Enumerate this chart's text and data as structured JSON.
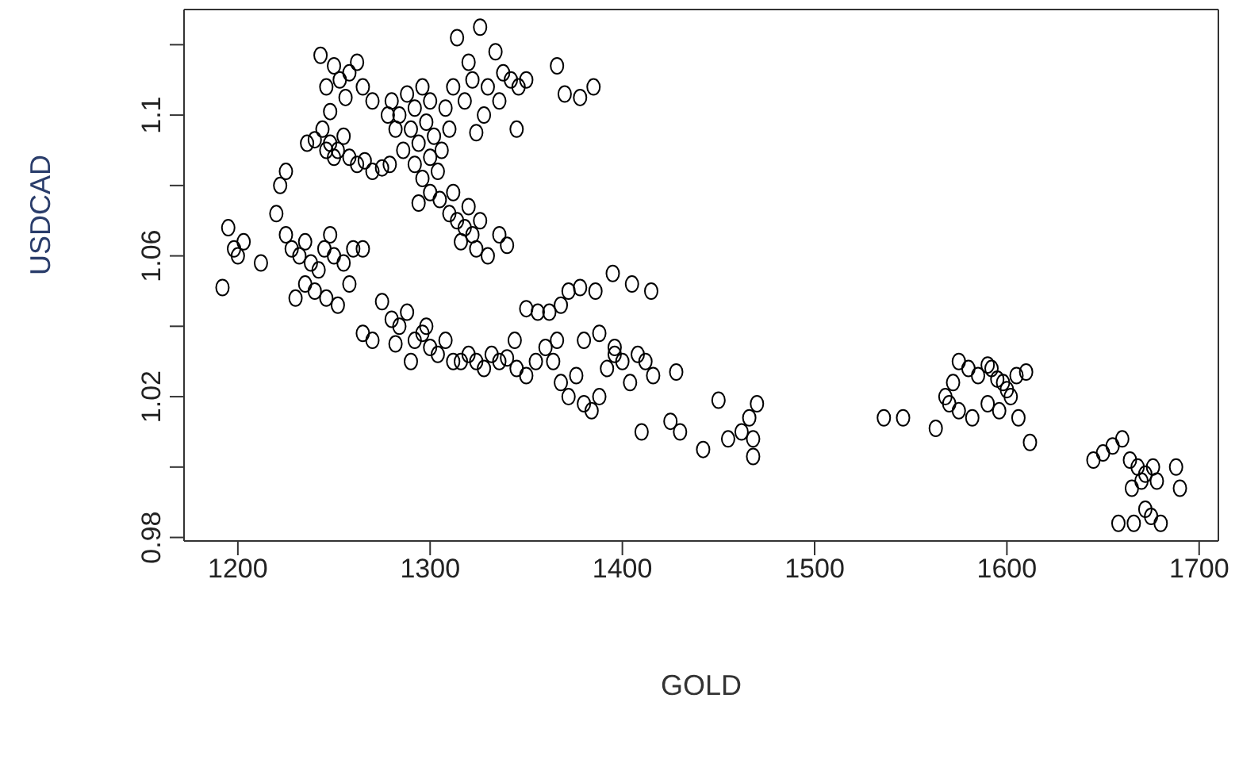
{
  "chart_data": {
    "type": "scatter",
    "xlabel": "GOLD",
    "ylabel": "USDCAD",
    "marker": "circle",
    "xlim": [
      1172,
      1710
    ],
    "xticks": [
      1200,
      1300,
      1400,
      1500,
      1600,
      1700
    ],
    "ylim": [
      0.979,
      1.13
    ],
    "yticks": [
      0.98,
      {
        "value": 1.0,
        "label": null
      },
      1.02,
      {
        "value": 1.04,
        "label": null
      },
      1.06,
      {
        "value": 1.08,
        "label": null
      },
      1.1,
      {
        "value": 1.12,
        "label": null
      }
    ],
    "series": [
      {
        "color": "#000000",
        "x": [
          1243,
          1250,
          1258,
          1262,
          1246,
          1253,
          1265,
          1256,
          1270,
          1248,
          1240,
          1244,
          1248,
          1252,
          1255,
          1258,
          1262,
          1266,
          1270,
          1275,
          1279,
          1246,
          1250,
          1236,
          1280,
          1284,
          1288,
          1292,
          1296,
          1300,
          1290,
          1294,
          1298,
          1286,
          1302,
          1306,
          1292,
          1296,
          1300,
          1304,
          1282,
          1278,
          1310,
          1308,
          1294,
          1300,
          1305,
          1310,
          1314,
          1318,
          1322,
          1316,
          1324,
          1330,
          1336,
          1340,
          1312,
          1320,
          1326,
          1314,
          1320,
          1326,
          1322,
          1330,
          1334,
          1338,
          1342,
          1346,
          1350,
          1318,
          1328,
          1324,
          1345,
          1336,
          1312,
          1366,
          1370,
          1378,
          1385,
          1195,
          1198,
          1200,
          1203,
          1192,
          1212,
          1220,
          1225,
          1228,
          1232,
          1235,
          1238,
          1242,
          1245,
          1250,
          1255,
          1260,
          1265,
          1230,
          1235,
          1240,
          1246,
          1252,
          1258,
          1225,
          1222,
          1248,
          1265,
          1270,
          1275,
          1280,
          1284,
          1288,
          1292,
          1296,
          1300,
          1304,
          1308,
          1312,
          1316,
          1320,
          1324,
          1328,
          1332,
          1336,
          1282,
          1290,
          1298,
          1340,
          1344,
          1350,
          1356,
          1362,
          1368,
          1345,
          1350,
          1355,
          1360,
          1364,
          1368,
          1372,
          1376,
          1380,
          1384,
          1388,
          1392,
          1396,
          1400,
          1404,
          1408,
          1412,
          1416,
          1380,
          1388,
          1396,
          1366,
          1372,
          1378,
          1386,
          1395,
          1405,
          1415,
          1410,
          1428,
          1425,
          1430,
          1442,
          1450,
          1455,
          1462,
          1466,
          1468,
          1468,
          1470,
          1536,
          1546,
          1563,
          1568,
          1572,
          1575,
          1580,
          1585,
          1590,
          1595,
          1600,
          1605,
          1610,
          1575,
          1582,
          1590,
          1596,
          1602,
          1606,
          1612,
          1570,
          1592,
          1598,
          1645,
          1650,
          1655,
          1660,
          1664,
          1668,
          1672,
          1676,
          1665,
          1670,
          1678,
          1688,
          1690,
          1658,
          1666,
          1675,
          1680,
          1672
        ],
        "values": [
          1.117,
          1.114,
          1.112,
          1.115,
          1.108,
          1.11,
          1.108,
          1.105,
          1.104,
          1.101,
          1.093,
          1.096,
          1.092,
          1.09,
          1.094,
          1.088,
          1.086,
          1.087,
          1.084,
          1.085,
          1.086,
          1.09,
          1.088,
          1.092,
          1.104,
          1.1,
          1.106,
          1.102,
          1.108,
          1.104,
          1.096,
          1.092,
          1.098,
          1.09,
          1.094,
          1.09,
          1.086,
          1.082,
          1.088,
          1.084,
          1.096,
          1.1,
          1.096,
          1.102,
          1.075,
          1.078,
          1.076,
          1.072,
          1.07,
          1.068,
          1.066,
          1.064,
          1.062,
          1.06,
          1.066,
          1.063,
          1.078,
          1.074,
          1.07,
          1.122,
          1.115,
          1.125,
          1.11,
          1.108,
          1.118,
          1.112,
          1.11,
          1.108,
          1.11,
          1.104,
          1.1,
          1.095,
          1.096,
          1.104,
          1.108,
          1.114,
          1.106,
          1.105,
          1.108,
          1.068,
          1.062,
          1.06,
          1.064,
          1.051,
          1.058,
          1.072,
          1.066,
          1.062,
          1.06,
          1.064,
          1.058,
          1.056,
          1.062,
          1.06,
          1.058,
          1.062,
          1.062,
          1.048,
          1.052,
          1.05,
          1.048,
          1.046,
          1.052,
          1.084,
          1.08,
          1.066,
          1.038,
          1.036,
          1.047,
          1.042,
          1.04,
          1.044,
          1.036,
          1.038,
          1.034,
          1.032,
          1.036,
          1.03,
          1.03,
          1.032,
          1.03,
          1.028,
          1.032,
          1.03,
          1.035,
          1.03,
          1.04,
          1.031,
          1.036,
          1.045,
          1.044,
          1.044,
          1.046,
          1.028,
          1.026,
          1.03,
          1.034,
          1.03,
          1.024,
          1.02,
          1.026,
          1.018,
          1.016,
          1.02,
          1.028,
          1.034,
          1.03,
          1.024,
          1.032,
          1.03,
          1.026,
          1.036,
          1.038,
          1.032,
          1.036,
          1.05,
          1.051,
          1.05,
          1.055,
          1.052,
          1.05,
          1.01,
          1.027,
          1.013,
          1.01,
          1.005,
          1.019,
          1.008,
          1.01,
          1.014,
          1.008,
          1.003,
          1.018,
          1.014,
          1.014,
          1.011,
          1.02,
          1.024,
          1.03,
          1.028,
          1.026,
          1.029,
          1.025,
          1.022,
          1.026,
          1.027,
          1.016,
          1.014,
          1.018,
          1.016,
          1.02,
          1.014,
          1.007,
          1.018,
          1.028,
          1.024,
          1.002,
          1.004,
          1.006,
          1.008,
          1.002,
          1.0,
          0.998,
          1.0,
          0.994,
          0.996,
          0.996,
          1.0,
          0.994,
          0.984,
          0.984,
          0.986,
          0.984,
          0.988
        ]
      }
    ]
  }
}
